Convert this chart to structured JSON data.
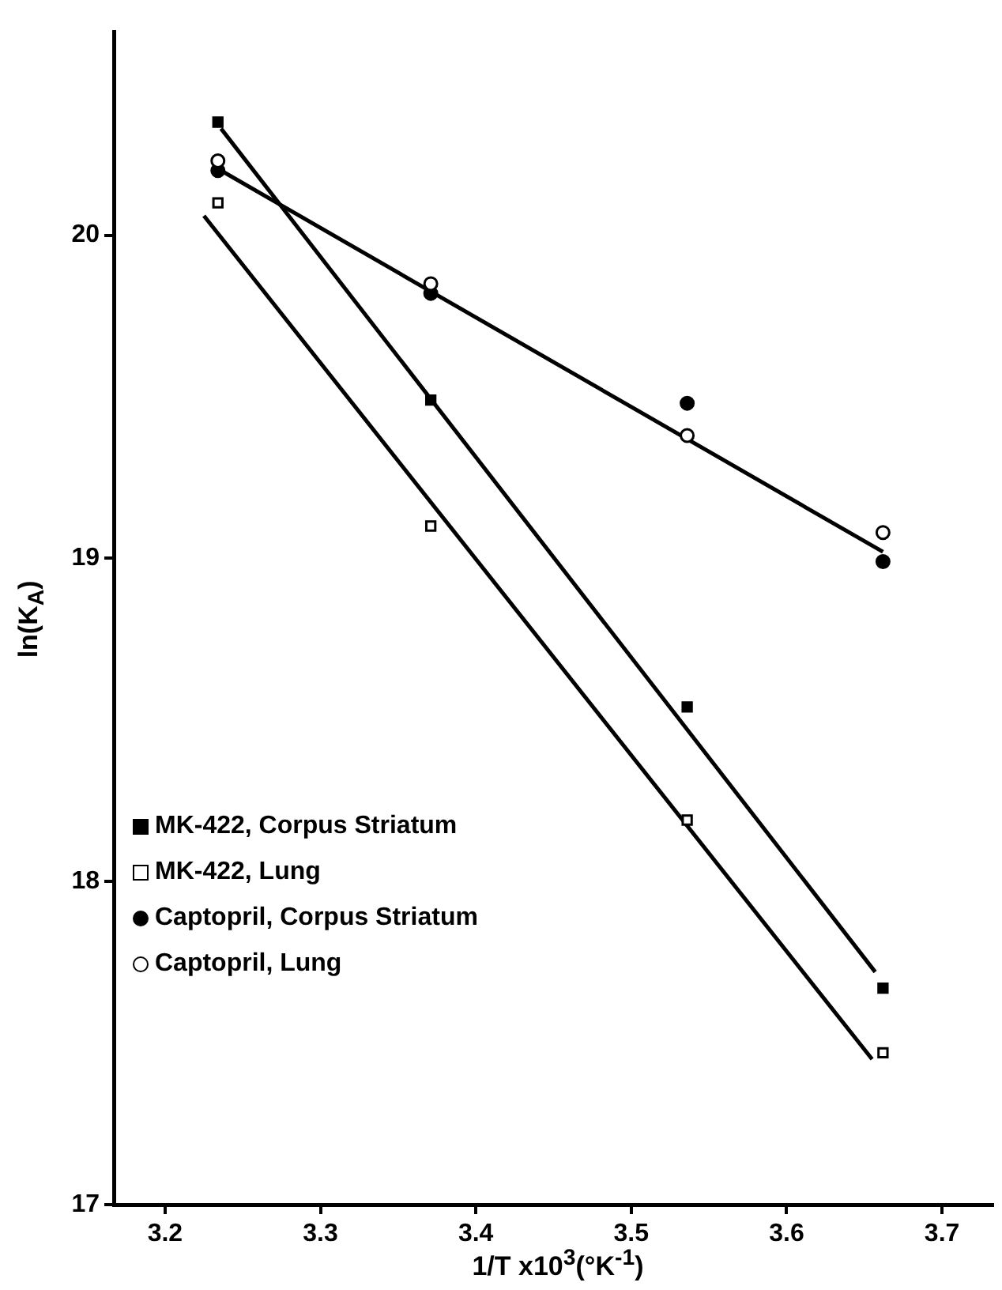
{
  "chart_data": {
    "type": "scatter",
    "xlabel": "1/T  x10$^{3}$(°K$^{-1}$)",
    "ylabel": "ln(K$_{A}$)",
    "x": [
      3.234,
      3.371,
      3.536,
      3.662
    ],
    "xlim": [
      3.167,
      3.733
    ],
    "xticks": [
      {
        "value": 3.2,
        "label": "3.2"
      },
      {
        "value": 3.3,
        "label": "3.3"
      },
      {
        "value": 3.4,
        "label": "3.4"
      },
      {
        "value": 3.5,
        "label": "3.5"
      },
      {
        "value": 3.6,
        "label": "3.6"
      },
      {
        "value": 3.7,
        "label": "3.7"
      }
    ],
    "ylim": [
      17,
      20.63
    ],
    "yticks": [
      17,
      18,
      19,
      20
    ],
    "grid": false,
    "legend": "bottom left",
    "series": [
      {
        "name": "MK-422, Corpus Striatum",
        "color": "#000000",
        "marker": "square",
        "values": [
          20.35,
          19.49,
          18.54,
          17.67
        ]
      },
      {
        "name": "MK-422, Lung",
        "color": "#ffffff",
        "marker": "square",
        "values": [
          20.1,
          19.1,
          18.19,
          17.47
        ]
      },
      {
        "name": "Captopril, Corpus Striatum",
        "color": "#000000",
        "marker": "circle",
        "values": [
          20.2,
          19.82,
          19.48,
          18.99
        ]
      },
      {
        "name": "Captopril, Lung",
        "color": "#ffffff",
        "marker": "circle",
        "values": [
          20.23,
          19.85,
          19.38,
          19.08
        ]
      },
      {
        "type": "line",
        "color": "#000000",
        "x": [
          3.236,
          3.657
        ],
        "values": [
          20.33,
          17.72
        ]
      },
      {
        "type": "line",
        "color": "#000000",
        "x": [
          3.225,
          3.655
        ],
        "values": [
          20.06,
          17.45
        ]
      },
      {
        "type": "line",
        "color": "#000000",
        "x": [
          3.236,
          3.662
        ],
        "values": [
          20.2,
          19.02
        ]
      }
    ]
  }
}
